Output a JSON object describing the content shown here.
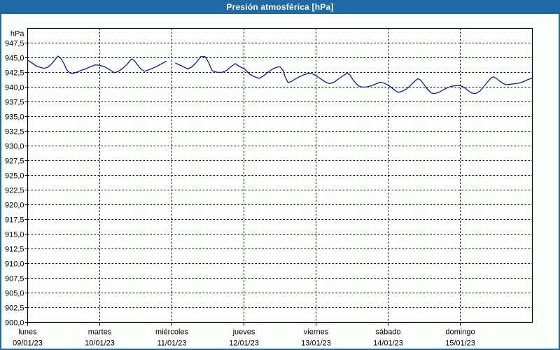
{
  "window": {
    "title": "Presión atmosférica [hPa]",
    "title_bar_color": "#1f6aa5",
    "border_color": "#1f6aa5",
    "background_color": "#fcfefb"
  },
  "chart_data": {
    "type": "line",
    "title": "Presión atmosférica [hPa]",
    "ylim": [
      900,
      950
    ],
    "xlim_days": [
      0,
      7
    ],
    "grid": "dashed",
    "grid_color": "#000000",
    "legend": "none",
    "y_axis": {
      "unit": "hPa",
      "ticks": [
        {
          "value": 947.5,
          "label": "947,5"
        },
        {
          "value": 945.0,
          "label": "945,0"
        },
        {
          "value": 942.5,
          "label": "942,5"
        },
        {
          "value": 940.0,
          "label": "940,0"
        },
        {
          "value": 937.5,
          "label": "937,5"
        },
        {
          "value": 935.0,
          "label": "935,0"
        },
        {
          "value": 932.5,
          "label": "932,5"
        },
        {
          "value": 930.0,
          "label": "930,0"
        },
        {
          "value": 927.5,
          "label": "927,5"
        },
        {
          "value": 925.0,
          "label": "925,0"
        },
        {
          "value": 922.5,
          "label": "922,5"
        },
        {
          "value": 920.0,
          "label": "920,0"
        },
        {
          "value": 917.5,
          "label": "917,5"
        },
        {
          "value": 915.0,
          "label": "915,0"
        },
        {
          "value": 912.5,
          "label": "912,5"
        },
        {
          "value": 910.0,
          "label": "910,0"
        },
        {
          "value": 907.5,
          "label": "907,5"
        },
        {
          "value": 905.0,
          "label": "905,0"
        },
        {
          "value": 902.5,
          "label": "902,5"
        },
        {
          "value": 900.0,
          "label": "900,0"
        }
      ]
    },
    "x_axis": {
      "days": [
        {
          "name": "lunes",
          "date": "09/01/23"
        },
        {
          "name": "martes",
          "date": "10/01/23"
        },
        {
          "name": "miércoles",
          "date": "11/01/23"
        },
        {
          "name": "jueves",
          "date": "12/01/23"
        },
        {
          "name": "viernes",
          "date": "13/01/23"
        },
        {
          "name": "sábado",
          "date": "14/01/23"
        },
        {
          "name": "domingo",
          "date": "15/01/23"
        }
      ]
    },
    "series": [
      {
        "name": "presión atmosférica",
        "color": "#1414b8",
        "segments": [
          [
            [
              0,
              944.6
            ],
            [
              0.06,
              944.1
            ],
            [
              0.12,
              943.6
            ],
            [
              0.18,
              943.35
            ],
            [
              0.23,
              943.2
            ],
            [
              0.29,
              943.45
            ],
            [
              0.35,
              944.2
            ],
            [
              0.42,
              945.3
            ],
            [
              0.46,
              944.9
            ],
            [
              0.5,
              944.1
            ],
            [
              0.54,
              943.0
            ],
            [
              0.58,
              942.45
            ],
            [
              0.62,
              942.3
            ],
            [
              0.67,
              942.5
            ],
            [
              0.73,
              942.8
            ],
            [
              0.8,
              943.1
            ],
            [
              0.87,
              943.45
            ],
            [
              0.94,
              943.8
            ],
            [
              1.0,
              943.7
            ],
            [
              1.06,
              943.5
            ],
            [
              1.12,
              943.1
            ],
            [
              1.17,
              942.7
            ],
            [
              1.21,
              942.45
            ],
            [
              1.26,
              942.7
            ],
            [
              1.32,
              943.2
            ],
            [
              1.38,
              943.9
            ],
            [
              1.44,
              944.8
            ],
            [
              1.48,
              944.5
            ],
            [
              1.53,
              943.7
            ],
            [
              1.57,
              943.1
            ],
            [
              1.62,
              942.7
            ],
            [
              1.67,
              942.9
            ],
            [
              1.73,
              943.2
            ],
            [
              1.8,
              943.6
            ],
            [
              1.86,
              944.0
            ],
            [
              1.92,
              944.4
            ]
          ],
          [
            [
              2.05,
              944.1
            ],
            [
              2.11,
              943.75
            ],
            [
              2.17,
              943.4
            ],
            [
              2.22,
              943.1
            ],
            [
              2.28,
              943.45
            ],
            [
              2.34,
              944.2
            ],
            [
              2.4,
              945.2
            ],
            [
              2.46,
              945.2
            ],
            [
              2.51,
              944.2
            ],
            [
              2.56,
              942.8
            ],
            [
              2.62,
              942.55
            ],
            [
              2.69,
              942.5
            ],
            [
              2.76,
              942.85
            ],
            [
              2.82,
              943.5
            ],
            [
              2.88,
              944.0
            ],
            [
              2.94,
              943.5
            ],
            [
              3.01,
              943.1
            ],
            [
              3.08,
              942.2
            ],
            [
              3.15,
              941.75
            ],
            [
              3.21,
              941.5
            ],
            [
              3.27,
              941.9
            ],
            [
              3.34,
              942.6
            ],
            [
              3.4,
              943.1
            ],
            [
              3.46,
              943.4
            ],
            [
              3.5,
              943.45
            ],
            [
              3.54,
              942.9
            ],
            [
              3.57,
              941.8
            ],
            [
              3.61,
              940.8
            ],
            [
              3.65,
              940.9
            ],
            [
              3.7,
              941.3
            ],
            [
              3.76,
              941.7
            ],
            [
              3.82,
              942.05
            ],
            [
              3.88,
              942.3
            ],
            [
              3.93,
              942.35
            ],
            [
              3.98,
              942.1
            ],
            [
              4.03,
              941.7
            ],
            [
              4.09,
              941.2
            ],
            [
              4.14,
              940.8
            ],
            [
              4.19,
              940.6
            ],
            [
              4.25,
              940.85
            ],
            [
              4.3,
              941.3
            ],
            [
              4.37,
              941.9
            ],
            [
              4.43,
              942.35
            ],
            [
              4.47,
              942.1
            ],
            [
              4.51,
              941.3
            ],
            [
              4.55,
              940.7
            ],
            [
              4.59,
              940.2
            ],
            [
              4.64,
              940.0
            ],
            [
              4.71,
              940.05
            ],
            [
              4.78,
              940.3
            ],
            [
              4.84,
              940.6
            ],
            [
              4.89,
              940.85
            ],
            [
              4.94,
              940.7
            ],
            [
              4.99,
              940.4
            ],
            [
              5.05,
              939.9
            ],
            [
              5.1,
              939.4
            ],
            [
              5.14,
              939.1
            ],
            [
              5.19,
              939.3
            ],
            [
              5.25,
              939.65
            ],
            [
              5.3,
              940.2
            ],
            [
              5.36,
              940.9
            ],
            [
              5.41,
              941.45
            ],
            [
              5.45,
              941.2
            ],
            [
              5.5,
              940.4
            ],
            [
              5.55,
              939.6
            ],
            [
              5.6,
              939.0
            ],
            [
              5.64,
              938.9
            ],
            [
              5.7,
              939.1
            ],
            [
              5.76,
              939.5
            ],
            [
              5.82,
              939.9
            ],
            [
              5.88,
              940.15
            ],
            [
              5.94,
              940.25
            ],
            [
              5.99,
              940.3
            ],
            [
              6.05,
              940.0
            ],
            [
              6.11,
              939.4
            ],
            [
              6.16,
              939.0
            ],
            [
              6.21,
              938.9
            ],
            [
              6.27,
              939.3
            ],
            [
              6.32,
              940.0
            ],
            [
              6.38,
              940.9
            ],
            [
              6.43,
              941.6
            ],
            [
              6.46,
              941.75
            ],
            [
              6.5,
              941.5
            ],
            [
              6.55,
              941.0
            ],
            [
              6.6,
              940.6
            ],
            [
              6.64,
              940.4
            ],
            [
              6.7,
              940.5
            ],
            [
              6.76,
              940.6
            ],
            [
              6.82,
              940.7
            ],
            [
              6.88,
              940.95
            ],
            [
              6.94,
              941.3
            ],
            [
              6.99,
              941.5
            ]
          ]
        ]
      }
    ]
  }
}
